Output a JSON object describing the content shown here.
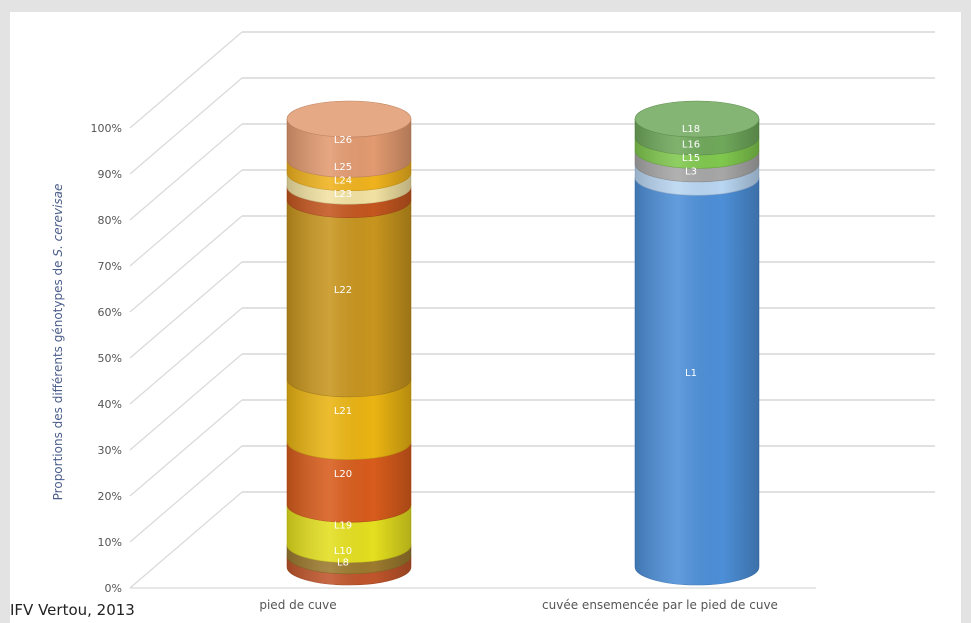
{
  "source_note": "IFV Vertou, 2013",
  "chart_data": {
    "type": "bar",
    "stacked": true,
    "three_d": "cylinder",
    "ylabel_prefix": "Proportions des différents génotypes de ",
    "ylabel_italic": "S. cerevisae",
    "xlabel": "",
    "ylim": [
      0,
      100
    ],
    "yticks": [
      "0%",
      "10%",
      "20%",
      "30%",
      "40%",
      "50%",
      "60%",
      "70%",
      "80%",
      "90%",
      "100%"
    ],
    "grid": true,
    "legend": "none",
    "categories": [
      "pied de cuve",
      "cuvée ensemencée par le pied de cuve"
    ],
    "stacks": [
      {
        "category": "pied de cuve",
        "segments": [
          {
            "label": "L8",
            "value": 2.5,
            "color": "#c0552b"
          },
          {
            "label": "L10",
            "value": 2.5,
            "color": "#9c7a2e"
          },
          {
            "label": "L19",
            "value": 9,
            "color": "#e4df1f"
          },
          {
            "label": "L20",
            "value": 14,
            "color": "#d85c1c"
          },
          {
            "label": "L21",
            "value": 14,
            "color": "#eab412"
          },
          {
            "label": "L22",
            "value": 40,
            "color": "#c8951e"
          },
          {
            "label": "L23",
            "value": 3,
            "color": "#c4561f"
          },
          {
            "label": "L24",
            "value": 3,
            "color": "#f2e2a2"
          },
          {
            "label": "L25",
            "value": 3,
            "color": "#f0b31e"
          },
          {
            "label": "L26",
            "value": 9,
            "color": "#e29a70"
          }
        ]
      },
      {
        "category": "cuvée ensemencée par le pied de cuve",
        "segments": [
          {
            "label": "L1",
            "value": 87,
            "color": "#4d8fd8"
          },
          {
            "label": "L3",
            "value": 3,
            "color": "#b9d6f2"
          },
          {
            "label": "L15",
            "value": 3,
            "color": "#a7a7a7"
          },
          {
            "label": "L16",
            "value": 3,
            "color": "#80c84e"
          },
          {
            "label": "L18",
            "value": 4,
            "color": "#6fa85b"
          }
        ]
      }
    ]
  }
}
